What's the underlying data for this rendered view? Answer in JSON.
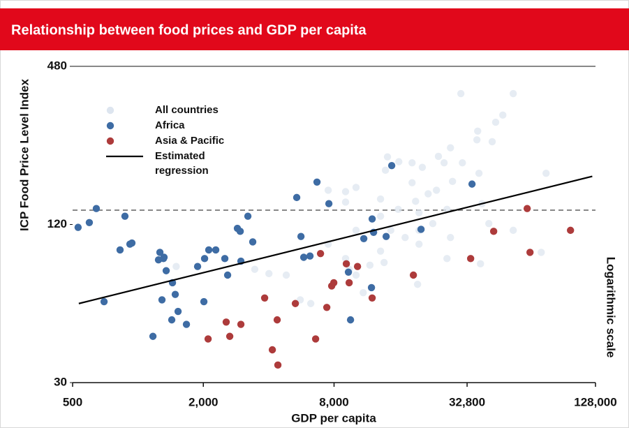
{
  "chart_data": {
    "type": "scatter",
    "title": "Relationship between food prices and GDP per capita",
    "x_label": "GDP per capita",
    "y_label": "ICP Food Price Level Index",
    "annotation": "Logarithmic scale",
    "xscale": "log",
    "yscale": "log",
    "xlim": [
      500,
      128000
    ],
    "ylim": [
      30,
      480
    ],
    "xticks": [
      500,
      {
        "value": 2000,
        "label": "2,000"
      },
      {
        "value": 8000,
        "label": "8,000"
      },
      {
        "value": 32800,
        "label": "32,800"
      },
      {
        "value": 128000,
        "label": "128,000"
      }
    ],
    "yticks": [
      30,
      120,
      480
    ],
    "hline": 136,
    "series": [
      {
        "name": "All countries",
        "color": "#dde5ef",
        "type": "scatter",
        "x": [
          30700,
          53500,
          47900,
          44400,
          36700,
          36400,
          42800,
          27500,
          24200,
          25700,
          31200,
          20400,
          18300,
          14100,
          13800,
          15900,
          37200,
          28100,
          23700,
          21700,
          18300,
          19000,
          13100,
          10100,
          9040,
          9040,
          7520,
          75800,
          13100,
          15800,
          19700,
          26500,
          38400,
          41300,
          53500,
          72000,
          37800,
          27500,
          19700,
          22800,
          17000,
          13100,
          13600,
          11700,
          10100,
          9390,
          9040,
          10900,
          5590,
          6250,
          4820,
          4010,
          3450,
          1500,
          19400,
          14600,
          10100,
          26500,
          7520,
          19700
        ],
        "values": [
          378,
          378,
          313,
          294,
          272,
          252,
          248,
          235,
          218,
          206,
          206,
          198,
          206,
          217,
          193,
          208,
          188,
          175,
          162,
          157,
          173,
          147,
          150,
          166,
          160,
          146,
          162,
          188,
          129,
          137,
          133,
          137,
          144,
          121,
          114,
          94,
          85,
          107,
          101,
          121,
          107,
          95,
          86,
          84,
          77,
          81,
          89,
          66,
          62,
          60,
          77,
          78,
          81,
          83,
          71,
          114,
          114,
          89,
          101,
          114
        ]
      },
      {
        "name": "Africa",
        "color": "#3e6ca4",
        "type": "scatter",
        "x": [
          530,
          597,
          643,
          698,
          827,
          871,
          918,
          938,
          1172,
          1243,
          1262,
          1290,
          1310,
          1319,
          1349,
          1431,
          1442,
          1485,
          1530,
          1672,
          1882,
          2012,
          2027,
          2119,
          2282,
          2512,
          2588,
          2870,
          2957,
          2979,
          3208,
          3378,
          5385,
          5633,
          5800,
          6200,
          6676,
          7573,
          9317,
          9528,
          10966,
          11898,
          11985,
          12166,
          13900,
          14747,
          20127,
          34556
        ],
        "values": [
          117,
          122,
          138,
          61,
          96,
          129,
          101,
          102,
          45,
          88,
          94,
          62,
          89,
          90,
          80,
          52,
          72,
          65,
          56,
          50,
          83,
          61,
          89,
          96,
          96,
          89,
          77,
          116,
          113,
          87,
          129,
          103,
          152,
          108,
          90,
          91,
          174,
          144,
          79,
          52,
          106,
          69,
          126,
          112,
          108,
          201,
          115,
          171
        ]
      },
      {
        "name": "Asia & Pacific",
        "color": "#ad3b3b",
        "type": "scatter",
        "x": [
          2104,
          2549,
          2647,
          2979,
          3832,
          4158,
          4377,
          4410,
          5308,
          6580,
          6931,
          7408,
          7802,
          7978,
          9114,
          9389,
          10261,
          11985,
          18557,
          34060,
          43478,
          62026,
          63915,
          98199
        ],
        "values": [
          44,
          51,
          45,
          50,
          63,
          40,
          52,
          35,
          60,
          44,
          93,
          58,
          70,
          72,
          85,
          72,
          83,
          63,
          77,
          89,
          113,
          138,
          94,
          114
        ]
      },
      {
        "name": "Estimated regression",
        "color": "#000000",
        "type": "line",
        "x": [
          534,
          123700
        ],
        "values": [
          60,
          183
        ]
      }
    ]
  }
}
